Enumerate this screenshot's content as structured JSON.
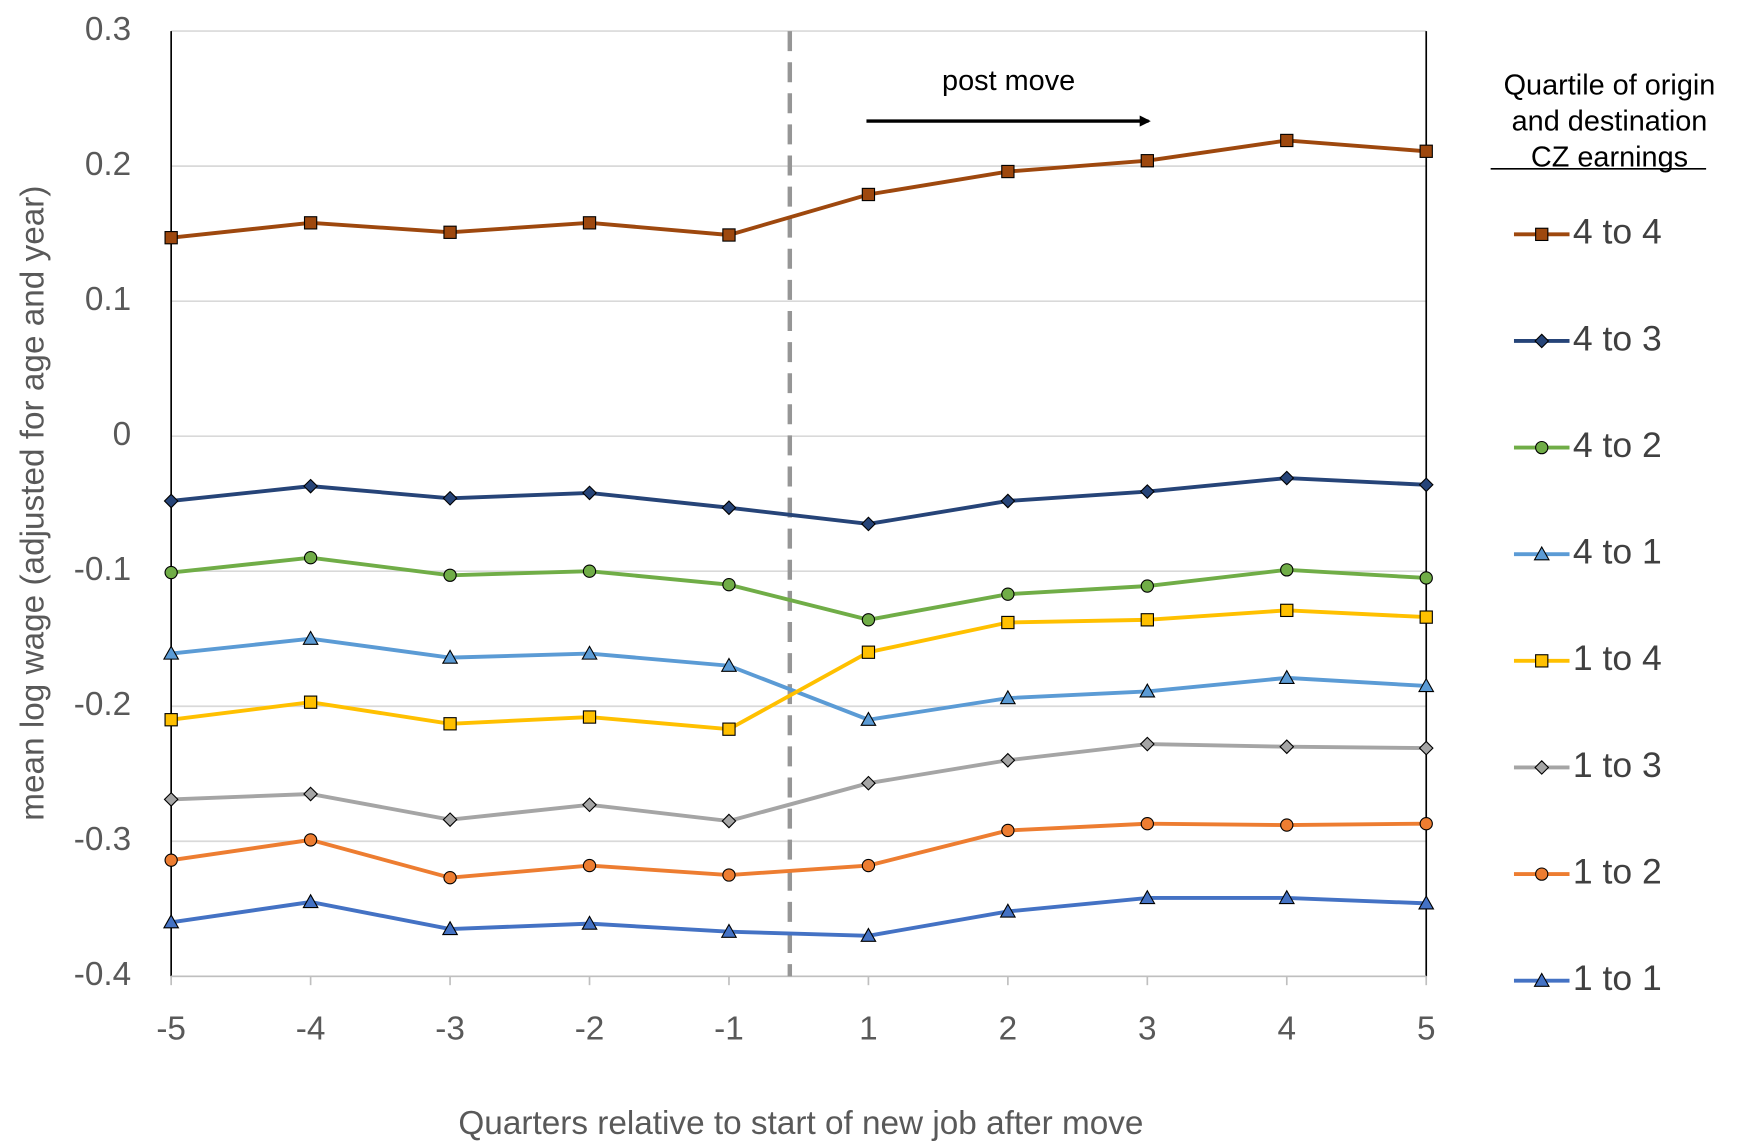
{
  "chart_data": {
    "type": "line",
    "x_label": "Quarters relative to start of new job after move",
    "y_label": "mean log wage (adjusted for age and year)",
    "annotation": "post move",
    "legend_title": [
      "Quartile of origin",
      "and destination",
      "CZ earnings"
    ],
    "categories": [
      "-5",
      "-4",
      "-3",
      "-2",
      "-1",
      "1",
      "2",
      "3",
      "4",
      "5"
    ],
    "ylim": [
      -0.4,
      0.3
    ],
    "yticks": [
      -0.4,
      -0.3,
      -0.2,
      -0.1,
      0,
      0.1,
      0.2,
      0.3
    ],
    "grid": true,
    "legend": "right",
    "series": [
      {
        "name": "4 to 4",
        "color": "#9e480e",
        "marker": "square",
        "values": [
          0.147,
          0.158,
          0.151,
          0.158,
          0.149,
          0.179,
          0.196,
          0.204,
          0.219,
          0.211
        ]
      },
      {
        "name": "4 to 3",
        "color": "#264478",
        "marker": "diamond",
        "values": [
          -0.048,
          -0.037,
          -0.046,
          -0.042,
          -0.053,
          -0.065,
          -0.048,
          -0.041,
          -0.031,
          -0.036
        ]
      },
      {
        "name": "4 to 2",
        "color": "#70ad47",
        "marker": "circle",
        "values": [
          -0.101,
          -0.09,
          -0.103,
          -0.1,
          -0.11,
          -0.136,
          -0.117,
          -0.111,
          -0.099,
          -0.105
        ]
      },
      {
        "name": "4 to 1",
        "color": "#5b9bd5",
        "marker": "triangle",
        "values": [
          -0.161,
          -0.15,
          -0.164,
          -0.161,
          -0.17,
          -0.21,
          -0.194,
          -0.189,
          -0.179,
          -0.185
        ]
      },
      {
        "name": "1 to 4",
        "color": "#ffc000",
        "marker": "square",
        "values": [
          -0.21,
          -0.197,
          -0.213,
          -0.208,
          -0.217,
          -0.16,
          -0.138,
          -0.136,
          -0.129,
          -0.134
        ]
      },
      {
        "name": "1 to 3",
        "color": "#a5a5a5",
        "marker": "diamond",
        "values": [
          -0.269,
          -0.265,
          -0.284,
          -0.273,
          -0.285,
          -0.257,
          -0.24,
          -0.228,
          -0.23,
          -0.231
        ]
      },
      {
        "name": "1 to 2",
        "color": "#ed7d31",
        "marker": "circle",
        "values": [
          -0.314,
          -0.299,
          -0.327,
          -0.318,
          -0.325,
          -0.318,
          -0.292,
          -0.287,
          -0.288,
          -0.287
        ]
      },
      {
        "name": "1 to 1",
        "color": "#4472c4",
        "marker": "triangle",
        "values": [
          -0.36,
          -0.345,
          -0.365,
          -0.361,
          -0.367,
          -0.37,
          -0.352,
          -0.342,
          -0.342,
          -0.346
        ]
      }
    ]
  }
}
